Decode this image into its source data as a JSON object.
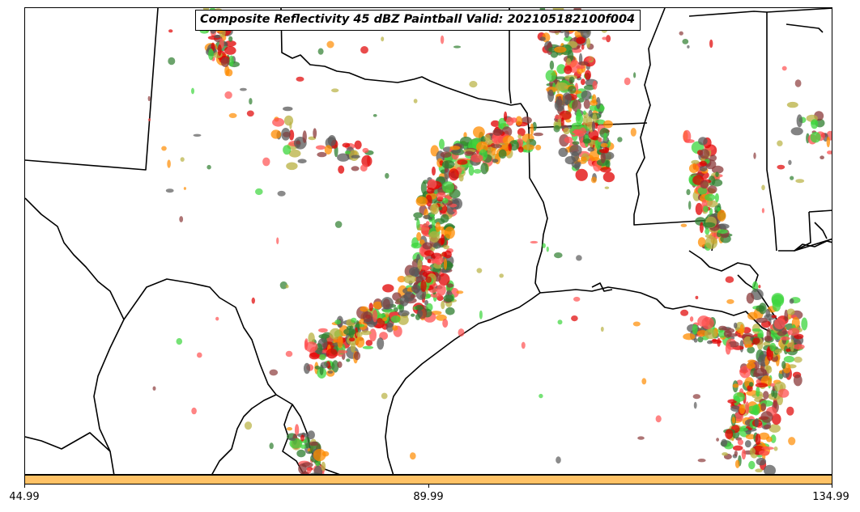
{
  "title": "Composite Reflectivity 45 dBZ Paintball Valid: 202105182100f004",
  "colorbar": {
    "color": "#ffc266",
    "tick_labels": [
      "44.99",
      "89.99",
      "134.99"
    ]
  },
  "paintball_colors": [
    "#e00000",
    "#ff8c00",
    "#3cd63c",
    "#b8b040",
    "#8b3a3a",
    "#5a5a5a",
    "#2e7d2e",
    "#ff5050"
  ],
  "map_region": "South-central United States (Texas, Louisiana, Gulf of Mexico)"
}
